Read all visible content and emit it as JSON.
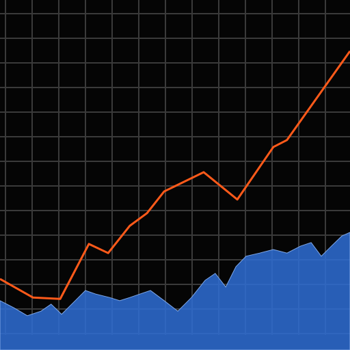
{
  "chart_data": {
    "type": "line",
    "background": "#050505",
    "grid": true,
    "grid_color": "#3a3a3a",
    "xlim": [
      0,
      100
    ],
    "ylim": [
      0,
      100
    ],
    "series": [
      {
        "type": "area",
        "color": "#2f6fd6",
        "x": [
          0,
          3.9,
          7.8,
          11.7,
          14.6,
          17.6,
          21.5,
          24.4,
          27.3,
          31.3,
          34.2,
          37.1,
          40,
          43,
          46.9,
          50.8,
          54.7,
          58.6,
          61.5,
          64.5,
          67.4,
          70.3,
          74.2,
          78.1,
          82,
          85.9,
          88.9,
          91.8,
          94.7,
          97.7,
          100
        ],
        "values": [
          14.1,
          12.1,
          9.8,
          11.1,
          13.1,
          10.2,
          14.1,
          17,
          16,
          15,
          14.1,
          15,
          16,
          17,
          14.1,
          11.1,
          15,
          19.9,
          21.9,
          18,
          23.8,
          26.8,
          27.7,
          28.7,
          27.7,
          29.7,
          30.7,
          26.8,
          29.7,
          32.6,
          33.6
        ]
      },
      {
        "type": "line",
        "color": "#ff5a1a",
        "x": [
          0,
          9.4,
          17.2,
          20.5,
          25.4,
          30.9,
          37.1,
          42,
          46.9,
          58.2,
          67.8,
          78.1,
          82,
          100
        ],
        "values": [
          20.3,
          15,
          14.6,
          20.9,
          30.3,
          27.7,
          35.5,
          39.1,
          45.3,
          50.8,
          43,
          58,
          60,
          85.4
        ]
      }
    ]
  }
}
